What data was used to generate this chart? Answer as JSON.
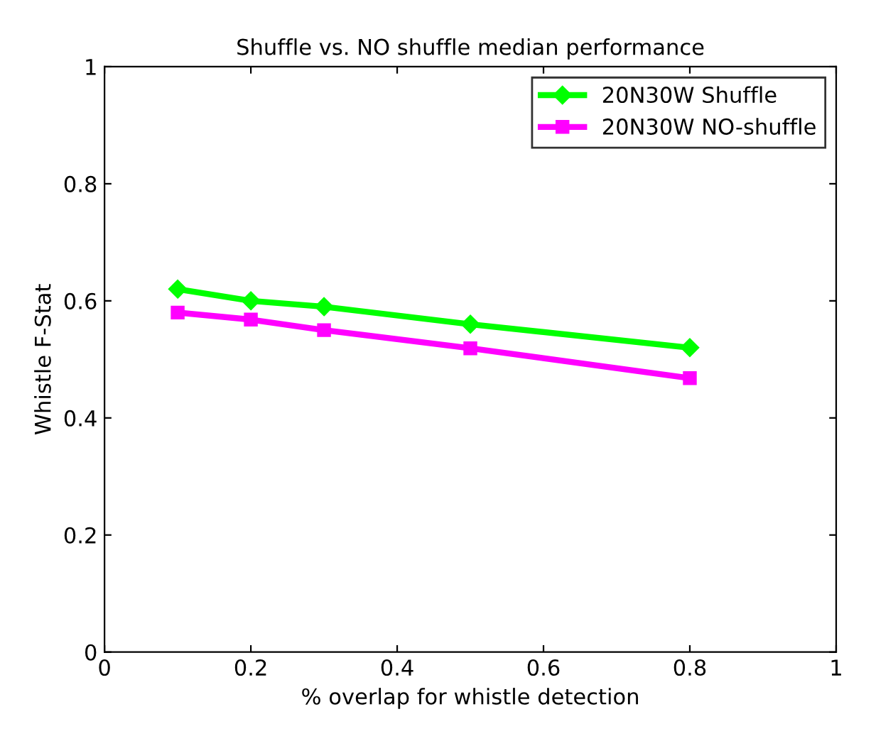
{
  "chart_data": {
    "type": "line",
    "title": "Shuffle vs. NO shuffle median performance",
    "xlabel": "% overlap for whistle detection",
    "ylabel": "Whistle F-Stat",
    "x": [
      0.1,
      0.2,
      0.3,
      0.5,
      0.8
    ],
    "series": [
      {
        "name": "20N30W Shuffle",
        "color": "#00ff00",
        "marker": "diamond",
        "values": [
          0.62,
          0.6,
          0.59,
          0.56,
          0.52
        ]
      },
      {
        "name": "20N30W NO-shuffle",
        "color": "#ff00ff",
        "marker": "square",
        "values": [
          0.58,
          0.568,
          0.55,
          0.519,
          0.468
        ]
      }
    ],
    "xlim": [
      0,
      1
    ],
    "xticks": [
      0,
      0.2,
      0.4,
      0.6,
      0.8,
      1
    ],
    "ylim": [
      0,
      1
    ],
    "yticks": [
      0,
      0.2,
      0.4,
      0.6,
      0.8,
      1
    ],
    "grid": false,
    "legend": "top right",
    "line_style": "solid"
  }
}
